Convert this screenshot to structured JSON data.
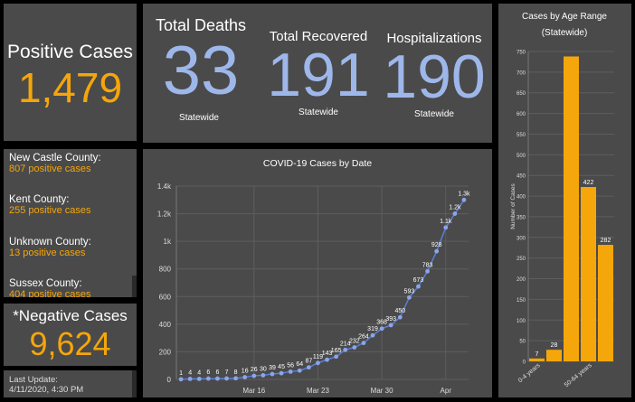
{
  "positive": {
    "label": "Positive Cases",
    "value": "1,479"
  },
  "deaths": {
    "label": "Total Deaths",
    "value": "33",
    "sub": "Statewide"
  },
  "recovered": {
    "label": "Total Recovered",
    "value": "191",
    "sub": "Statewide"
  },
  "hospitalizations": {
    "label": "Hospitalizations",
    "value": "190",
    "sub": "Statewide"
  },
  "counties": [
    {
      "name": "New Castle County:",
      "count": "807 positive cases"
    },
    {
      "name": "Kent County:",
      "count": "255 positive cases"
    },
    {
      "name": "Unknown County:",
      "count": "13 positive cases"
    },
    {
      "name": "Sussex County:",
      "count": "404 positive cases"
    }
  ],
  "negative": {
    "label": "*Negative Cases",
    "value": "9,624"
  },
  "update": {
    "label": "Last Update:",
    "value": "4/11/2020, 4:30 PM"
  },
  "colors": {
    "accent_orange": "#f5a60a",
    "number_blue": "#9eb7ea",
    "line_blue": "#5b7fd4",
    "panel": "#4a4a4a"
  },
  "chart_data": [
    {
      "type": "line",
      "title": "COVID-19 Cases by Date",
      "x_tick_labels": [
        "Mar 16",
        "Mar 23",
        "Mar 30",
        "Apr"
      ],
      "x_tick_index": [
        8,
        15,
        22,
        29
      ],
      "values": [
        1,
        4,
        4,
        6,
        6,
        7,
        8,
        16,
        26,
        30,
        39,
        45,
        56,
        64,
        87,
        119,
        143,
        165,
        214,
        232,
        264,
        319,
        368,
        393,
        450,
        593,
        673,
        783,
        928,
        1100,
        1200,
        1300
      ],
      "point_labels": [
        "1",
        "4",
        "4",
        "6",
        "6",
        "7",
        "8",
        "16",
        "26",
        "30",
        "39",
        "45",
        "56",
        "64",
        "87",
        "119",
        "143",
        "165",
        "214",
        "232",
        "264",
        "319",
        "368",
        "393",
        "450",
        "593",
        "673",
        "783",
        "928",
        "1.1k",
        "1.2k",
        "1.3k"
      ],
      "y_ticks": [
        "0",
        "200",
        "400",
        "600",
        "800",
        "1k",
        "1.2k",
        "1.4k"
      ],
      "ylim": [
        0,
        1400
      ],
      "grid": true
    },
    {
      "type": "bar",
      "title": "Cases by Age Range",
      "subtitle": "(Statewide)",
      "ylabel": "Number of Cases",
      "categories": [
        "0-4 years",
        "",
        "",
        "50-64 years",
        ""
      ],
      "values": [
        7,
        28,
        738,
        422,
        282
      ],
      "data_labels": [
        "7",
        "28",
        "",
        "422",
        "282"
      ],
      "y_ticks": [
        "0",
        "50",
        "100",
        "150",
        "200",
        "250",
        "300",
        "350",
        "400",
        "450",
        "500",
        "550",
        "600",
        "650",
        "700",
        "750"
      ],
      "ylim": [
        0,
        750
      ],
      "grid": true
    }
  ]
}
